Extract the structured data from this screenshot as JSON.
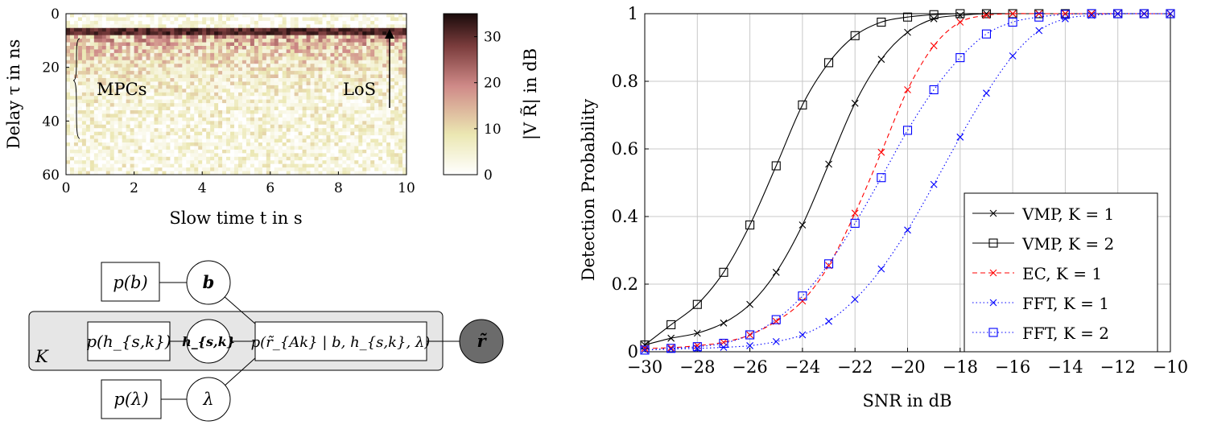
{
  "heatmap": {
    "xlabel": "Slow time t in s",
    "ylabel": "Delay τ in ns",
    "xticks": [
      "0",
      "2",
      "4",
      "6",
      "8",
      "10"
    ],
    "yticks": [
      "0",
      "20",
      "40",
      "60"
    ],
    "xlim": [
      0,
      10
    ],
    "ylim": [
      60,
      0
    ],
    "annotation_left": "MPCs",
    "annotation_right": "LoS",
    "colorbar_label": "|V R̃| in dB",
    "colorbar_ticks": [
      "0",
      "10",
      "20",
      "30"
    ],
    "colorbar_range": [
      0,
      35
    ],
    "colors": [
      "#ffffff",
      "#e9e6ae",
      "#c97a7a",
      "#1e0c0c"
    ]
  },
  "factor_graph": {
    "plate_label": "K",
    "nodes": {
      "pb": "p(b)",
      "b": "b",
      "ph": "p(h_{s,k})",
      "h": "h_{s,k}",
      "pr": "p(r̃_{Ak} | b, h_{s,k}, λ)",
      "r": "r̃",
      "plam": "p(λ)",
      "lam": "λ"
    }
  },
  "chart_data": {
    "type": "line",
    "xlabel": "SNR in dB",
    "ylabel": "Detection Probability",
    "xlim": [
      -30,
      -10
    ],
    "ylim": [
      0,
      1
    ],
    "xticks": [
      "−30",
      "−28",
      "−26",
      "−24",
      "−22",
      "−20",
      "−18",
      "−16",
      "−14",
      "−12",
      "−10"
    ],
    "yticks": [
      "0",
      "0.2",
      "0.4",
      "0.6",
      "0.8",
      "1"
    ],
    "grid": true,
    "legend_position": "bottom-right",
    "x": [
      -30,
      -29,
      -28,
      -27,
      -26,
      -25,
      -24,
      -23,
      -22,
      -21,
      -20,
      -19,
      -18,
      -17,
      -16,
      -15,
      -14,
      -13,
      -12,
      -11,
      -10
    ],
    "series": [
      {
        "name": "VMP, K = 1",
        "color": "#000000",
        "dash": "solid",
        "marker": "x",
        "values": [
          0.02,
          0.04,
          0.055,
          0.085,
          0.14,
          0.235,
          0.375,
          0.555,
          0.735,
          0.865,
          0.945,
          0.985,
          0.995,
          1,
          1,
          1,
          1,
          1,
          1,
          1,
          1
        ]
      },
      {
        "name": "VMP, K = 2",
        "color": "#000000",
        "dash": "solid",
        "marker": "square",
        "values": [
          0.02,
          0.08,
          0.14,
          0.235,
          0.375,
          0.55,
          0.73,
          0.855,
          0.935,
          0.975,
          0.99,
          0.997,
          1,
          1,
          1,
          1,
          1,
          1,
          1,
          1,
          1
        ]
      },
      {
        "name": "EC, K = 1",
        "color": "#ff0000",
        "dash": "dashed",
        "marker": "x",
        "values": [
          0.01,
          0.012,
          0.018,
          0.028,
          0.05,
          0.09,
          0.15,
          0.255,
          0.41,
          0.59,
          0.775,
          0.905,
          0.975,
          0.995,
          1,
          1,
          1,
          1,
          1,
          1,
          1
        ]
      },
      {
        "name": "FFT, K = 1",
        "color": "#0000ff",
        "dash": "dotted",
        "marker": "x",
        "values": [
          0.005,
          0.008,
          0.01,
          0.013,
          0.018,
          0.03,
          0.05,
          0.09,
          0.155,
          0.245,
          0.36,
          0.495,
          0.635,
          0.765,
          0.875,
          0.95,
          0.985,
          0.995,
          1,
          1,
          1
        ]
      },
      {
        "name": "FFT, K = 2",
        "color": "#0000ff",
        "dash": "dotted",
        "marker": "square",
        "values": [
          0.005,
          0.01,
          0.015,
          0.025,
          0.05,
          0.095,
          0.165,
          0.26,
          0.38,
          0.515,
          0.655,
          0.775,
          0.87,
          0.94,
          0.975,
          0.99,
          0.998,
          1,
          1,
          1,
          1
        ]
      }
    ]
  }
}
